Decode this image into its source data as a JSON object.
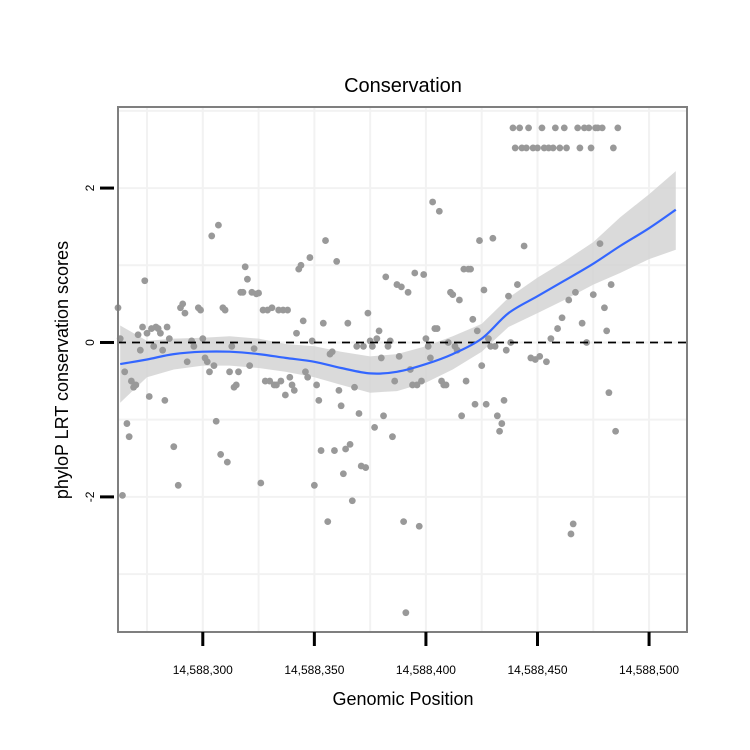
{
  "chart_data": {
    "type": "scatter",
    "title": "Conservation",
    "xlabel": "Genomic Position",
    "ylabel": "phyloP LRT conservation scores",
    "xlim": [
      14588262,
      14588517
    ],
    "ylim": [
      -3.75,
      3.05
    ],
    "x_ticks": [
      {
        "value": 14588300,
        "label": "14,588,300"
      },
      {
        "value": 14588350,
        "label": "14,588,350"
      },
      {
        "value": 14588400,
        "label": "14,588,400"
      },
      {
        "value": 14588450,
        "label": "14,588,450"
      },
      {
        "value": 14588500,
        "label": "14,588,500"
      }
    ],
    "y_ticks": [
      {
        "value": -2,
        "label": "-2"
      },
      {
        "value": 0,
        "label": "0"
      },
      {
        "value": 2,
        "label": "2"
      }
    ],
    "x_minor_grid": [
      14588275,
      14588325,
      14588375,
      14588425,
      14588475
    ],
    "y_minor_grid": [
      -3,
      -1,
      1,
      3
    ],
    "reference_line": {
      "y": 0,
      "style": "dashed",
      "color": "#000000"
    },
    "colors": {
      "points": "#999999",
      "smooth_line": "#3366FF",
      "confidence_band": "#d3d3d3",
      "grid": "#f2f2f2",
      "panel_border": "#7f7f7f"
    },
    "points": [
      [
        14588262,
        0.45
      ],
      [
        14588263,
        0.05
      ],
      [
        14588264,
        -1.98
      ],
      [
        14588265,
        -0.38
      ],
      [
        14588266,
        -1.05
      ],
      [
        14588267,
        -1.22
      ],
      [
        14588268,
        -0.5
      ],
      [
        14588269,
        -0.58
      ],
      [
        14588270,
        -0.55
      ],
      [
        14588271,
        0.1
      ],
      [
        14588272,
        -0.1
      ],
      [
        14588273,
        0.2
      ],
      [
        14588274,
        0.8
      ],
      [
        14588275,
        0.12
      ],
      [
        14588276,
        -0.7
      ],
      [
        14588277,
        0.18
      ],
      [
        14588278,
        -0.05
      ],
      [
        14588279,
        0.2
      ],
      [
        14588280,
        0.18
      ],
      [
        14588281,
        0.12
      ],
      [
        14588282,
        -0.1
      ],
      [
        14588283,
        -0.75
      ],
      [
        14588284,
        0.2
      ],
      [
        14588285,
        0.05
      ],
      [
        14588287,
        -1.35
      ],
      [
        14588289,
        -1.85
      ],
      [
        14588290,
        0.45
      ],
      [
        14588291,
        0.5
      ],
      [
        14588292,
        0.38
      ],
      [
        14588293,
        -0.25
      ],
      [
        14588295,
        0.02
      ],
      [
        14588296,
        -0.05
      ],
      [
        14588298,
        0.45
      ],
      [
        14588299,
        0.42
      ],
      [
        14588300,
        0.05
      ],
      [
        14588301,
        -0.2
      ],
      [
        14588302,
        -0.25
      ],
      [
        14588303,
        -0.38
      ],
      [
        14588304,
        1.38
      ],
      [
        14588305,
        -0.3
      ],
      [
        14588306,
        -1.02
      ],
      [
        14588307,
        1.52
      ],
      [
        14588308,
        -1.45
      ],
      [
        14588309,
        0.45
      ],
      [
        14588310,
        0.42
      ],
      [
        14588311,
        -1.55
      ],
      [
        14588312,
        -0.38
      ],
      [
        14588313,
        -0.05
      ],
      [
        14588314,
        -0.58
      ],
      [
        14588315,
        -0.55
      ],
      [
        14588316,
        -0.38
      ],
      [
        14588317,
        0.65
      ],
      [
        14588318,
        0.65
      ],
      [
        14588319,
        0.98
      ],
      [
        14588320,
        0.82
      ],
      [
        14588321,
        -0.3
      ],
      [
        14588322,
        0.65
      ],
      [
        14588323,
        -0.08
      ],
      [
        14588324,
        0.63
      ],
      [
        14588325,
        0.64
      ],
      [
        14588326,
        -1.82
      ],
      [
        14588327,
        0.42
      ],
      [
        14588328,
        -0.5
      ],
      [
        14588329,
        0.42
      ],
      [
        14588330,
        -0.5
      ],
      [
        14588331,
        0.45
      ],
      [
        14588332,
        -0.55
      ],
      [
        14588333,
        -0.55
      ],
      [
        14588334,
        0.42
      ],
      [
        14588335,
        -0.5
      ],
      [
        14588336,
        0.42
      ],
      [
        14588337,
        -0.68
      ],
      [
        14588338,
        0.42
      ],
      [
        14588339,
        -0.45
      ],
      [
        14588340,
        -0.55
      ],
      [
        14588341,
        -0.62
      ],
      [
        14588342,
        0.12
      ],
      [
        14588343,
        0.95
      ],
      [
        14588344,
        1.0
      ],
      [
        14588345,
        0.28
      ],
      [
        14588346,
        -0.38
      ],
      [
        14588347,
        -0.45
      ],
      [
        14588348,
        1.1
      ],
      [
        14588349,
        0.02
      ],
      [
        14588350,
        -1.85
      ],
      [
        14588351,
        -0.55
      ],
      [
        14588352,
        -0.75
      ],
      [
        14588353,
        -1.4
      ],
      [
        14588354,
        0.25
      ],
      [
        14588355,
        1.32
      ],
      [
        14588356,
        -2.32
      ],
      [
        14588357,
        -0.15
      ],
      [
        14588358,
        -0.12
      ],
      [
        14588359,
        -1.4
      ],
      [
        14588360,
        1.05
      ],
      [
        14588361,
        -0.62
      ],
      [
        14588362,
        -0.82
      ],
      [
        14588363,
        -1.7
      ],
      [
        14588364,
        -1.38
      ],
      [
        14588365,
        0.25
      ],
      [
        14588366,
        -1.32
      ],
      [
        14588367,
        -2.05
      ],
      [
        14588368,
        -0.58
      ],
      [
        14588369,
        -0.05
      ],
      [
        14588370,
        -0.92
      ],
      [
        14588371,
        -1.6
      ],
      [
        14588372,
        -0.05
      ],
      [
        14588373,
        -1.62
      ],
      [
        14588374,
        0.38
      ],
      [
        14588375,
        0.02
      ],
      [
        14588376,
        -0.05
      ],
      [
        14588377,
        -1.1
      ],
      [
        14588378,
        0.05
      ],
      [
        14588379,
        0.15
      ],
      [
        14588380,
        -0.2
      ],
      [
        14588381,
        -0.95
      ],
      [
        14588382,
        0.85
      ],
      [
        14588383,
        -0.05
      ],
      [
        14588384,
        0.02
      ],
      [
        14588385,
        -1.22
      ],
      [
        14588386,
        -0.5
      ],
      [
        14588387,
        0.75
      ],
      [
        14588388,
        -0.18
      ],
      [
        14588389,
        0.72
      ],
      [
        14588390,
        -2.32
      ],
      [
        14588391,
        -3.5
      ],
      [
        14588392,
        0.65
      ],
      [
        14588393,
        -0.35
      ],
      [
        14588394,
        -0.55
      ],
      [
        14588395,
        0.9
      ],
      [
        14588396,
        -0.55
      ],
      [
        14588397,
        -2.38
      ],
      [
        14588398,
        -0.5
      ],
      [
        14588399,
        0.88
      ],
      [
        14588400,
        0.05
      ],
      [
        14588401,
        -0.05
      ],
      [
        14588402,
        -0.2
      ],
      [
        14588403,
        1.82
      ],
      [
        14588404,
        0.18
      ],
      [
        14588405,
        0.18
      ],
      [
        14588406,
        1.7
      ],
      [
        14588407,
        -0.5
      ],
      [
        14588408,
        -0.55
      ],
      [
        14588409,
        -0.55
      ],
      [
        14588410,
        0.0
      ],
      [
        14588411,
        0.65
      ],
      [
        14588412,
        0.62
      ],
      [
        14588413,
        -0.05
      ],
      [
        14588414,
        -0.1
      ],
      [
        14588415,
        0.55
      ],
      [
        14588416,
        -0.95
      ],
      [
        14588417,
        0.95
      ],
      [
        14588418,
        -0.5
      ],
      [
        14588419,
        0.95
      ],
      [
        14588420,
        0.95
      ],
      [
        14588421,
        0.3
      ],
      [
        14588422,
        -0.8
      ],
      [
        14588423,
        0.15
      ],
      [
        14588424,
        1.32
      ],
      [
        14588425,
        -0.3
      ],
      [
        14588426,
        0.68
      ],
      [
        14588427,
        -0.8
      ],
      [
        14588428,
        0.05
      ],
      [
        14588429,
        -0.05
      ],
      [
        14588430,
        1.35
      ],
      [
        14588431,
        -0.05
      ],
      [
        14588432,
        -0.95
      ],
      [
        14588433,
        -1.15
      ],
      [
        14588434,
        -1.05
      ],
      [
        14588435,
        -0.75
      ],
      [
        14588436,
        -0.1
      ],
      [
        14588437,
        0.6
      ],
      [
        14588438,
        0.0
      ],
      [
        14588439,
        2.78
      ],
      [
        14588440,
        2.52
      ],
      [
        14588441,
        0.75
      ],
      [
        14588442,
        2.78
      ],
      [
        14588443,
        2.52
      ],
      [
        14588444,
        1.25
      ],
      [
        14588445,
        2.52
      ],
      [
        14588446,
        2.78
      ],
      [
        14588447,
        -0.2
      ],
      [
        14588448,
        2.52
      ],
      [
        14588449,
        -0.22
      ],
      [
        14588450,
        2.52
      ],
      [
        14588451,
        -0.18
      ],
      [
        14588452,
        2.78
      ],
      [
        14588453,
        2.52
      ],
      [
        14588454,
        -0.25
      ],
      [
        14588455,
        2.52
      ],
      [
        14588456,
        0.05
      ],
      [
        14588457,
        2.52
      ],
      [
        14588458,
        2.78
      ],
      [
        14588459,
        0.18
      ],
      [
        14588460,
        2.52
      ],
      [
        14588461,
        0.32
      ],
      [
        14588462,
        2.78
      ],
      [
        14588463,
        2.52
      ],
      [
        14588464,
        0.55
      ],
      [
        14588465,
        -2.48
      ],
      [
        14588466,
        -2.35
      ],
      [
        14588467,
        0.65
      ],
      [
        14588468,
        2.78
      ],
      [
        14588469,
        2.52
      ],
      [
        14588470,
        0.25
      ],
      [
        14588471,
        2.78
      ],
      [
        14588472,
        0.0
      ],
      [
        14588473,
        2.78
      ],
      [
        14588474,
        2.52
      ],
      [
        14588475,
        0.62
      ],
      [
        14588476,
        2.78
      ],
      [
        14588477,
        2.78
      ],
      [
        14588478,
        1.28
      ],
      [
        14588479,
        2.78
      ],
      [
        14588480,
        0.45
      ],
      [
        14588481,
        0.15
      ],
      [
        14588482,
        -0.65
      ],
      [
        14588483,
        0.75
      ],
      [
        14588484,
        2.52
      ],
      [
        14588485,
        -1.15
      ],
      [
        14588486,
        2.78
      ]
    ],
    "smooth": {
      "x": [
        14588263,
        14588275,
        14588287,
        14588300,
        14588312,
        14588325,
        14588337,
        14588350,
        14588362,
        14588375,
        14588387,
        14588400,
        14588412,
        14588425,
        14588437,
        14588450,
        14588462,
        14588475,
        14588487,
        14588500,
        14588512
      ],
      "y": [
        -0.28,
        -0.22,
        -0.15,
        -0.12,
        -0.12,
        -0.15,
        -0.2,
        -0.25,
        -0.33,
        -0.4,
        -0.38,
        -0.28,
        -0.15,
        0.05,
        0.38,
        0.6,
        0.8,
        1.02,
        1.25,
        1.48,
        1.72
      ],
      "lower": [
        -0.78,
        -0.45,
        -0.35,
        -0.3,
        -0.3,
        -0.33,
        -0.38,
        -0.45,
        -0.55,
        -0.65,
        -0.63,
        -0.52,
        -0.35,
        -0.12,
        0.2,
        0.38,
        0.55,
        0.75,
        0.9,
        1.08,
        1.2
      ],
      "upper": [
        0.22,
        0.02,
        0.05,
        0.06,
        0.08,
        0.05,
        -0.02,
        -0.05,
        -0.12,
        -0.18,
        -0.15,
        -0.05,
        0.08,
        0.24,
        0.58,
        0.84,
        1.05,
        1.3,
        1.62,
        1.92,
        2.22
      ]
    }
  }
}
